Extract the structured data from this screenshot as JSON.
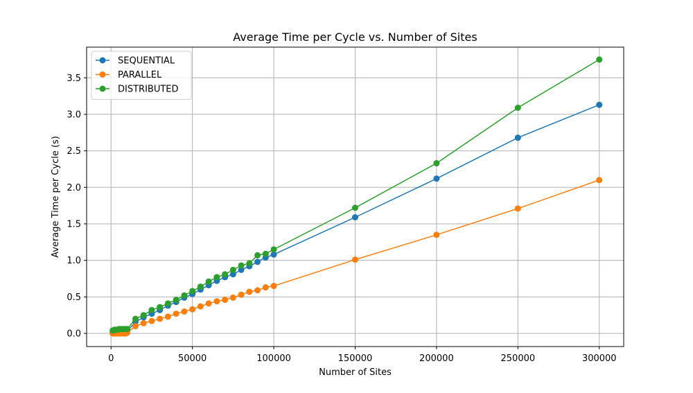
{
  "chart_data": {
    "type": "line",
    "title": "Average Time per Cycle vs. Number of Sites",
    "xlabel": "Number of Sites",
    "ylabel": "Average Time per Cycle (s)",
    "xlim": [
      -15000,
      315000
    ],
    "ylim": [
      -0.18,
      3.92
    ],
    "xticks": [
      0,
      50000,
      100000,
      150000,
      200000,
      250000,
      300000
    ],
    "xtick_labels": [
      "0",
      "50000",
      "100000",
      "150000",
      "200000",
      "250000",
      "300000"
    ],
    "yticks": [
      0.0,
      0.5,
      1.0,
      1.5,
      2.0,
      2.5,
      3.0,
      3.5
    ],
    "ytick_labels": [
      "0.0",
      "0.5",
      "1.0",
      "1.5",
      "2.0",
      "2.5",
      "3.0",
      "3.5"
    ],
    "grid": true,
    "legend_position": "upper-left",
    "x": [
      1000,
      2000,
      3000,
      4000,
      5000,
      6000,
      7000,
      8000,
      9000,
      10000,
      15000,
      20000,
      25000,
      30000,
      35000,
      40000,
      45000,
      50000,
      55000,
      60000,
      65000,
      70000,
      75000,
      80000,
      85000,
      90000,
      95000,
      100000,
      150000,
      200000,
      250000,
      300000
    ],
    "series": [
      {
        "name": "SEQUENTIAL",
        "color": "#1f77b4",
        "values": [
          0.01,
          0.01,
          0.01,
          0.02,
          0.02,
          0.02,
          0.02,
          0.03,
          0.03,
          0.03,
          0.16,
          0.22,
          0.27,
          0.32,
          0.38,
          0.43,
          0.49,
          0.54,
          0.6,
          0.66,
          0.72,
          0.77,
          0.81,
          0.87,
          0.92,
          0.98,
          1.04,
          1.08,
          1.59,
          2.12,
          2.68,
          3.13
        ]
      },
      {
        "name": "PARALLEL",
        "color": "#ff7f0e",
        "values": [
          0.0,
          0.0,
          0.0,
          0.0,
          0.0,
          0.0,
          0.0,
          0.0,
          0.0,
          0.01,
          0.1,
          0.14,
          0.17,
          0.2,
          0.23,
          0.27,
          0.3,
          0.33,
          0.37,
          0.41,
          0.44,
          0.46,
          0.49,
          0.53,
          0.57,
          0.59,
          0.63,
          0.65,
          1.01,
          1.35,
          1.71,
          2.1
        ]
      },
      {
        "name": "DISTRIBUTED",
        "color": "#2ca02c",
        "values": [
          0.04,
          0.05,
          0.05,
          0.05,
          0.06,
          0.06,
          0.06,
          0.06,
          0.06,
          0.06,
          0.2,
          0.25,
          0.32,
          0.36,
          0.41,
          0.46,
          0.52,
          0.58,
          0.64,
          0.71,
          0.77,
          0.81,
          0.87,
          0.93,
          0.96,
          1.07,
          1.09,
          1.15,
          1.72,
          2.33,
          3.09,
          3.75
        ]
      }
    ]
  }
}
